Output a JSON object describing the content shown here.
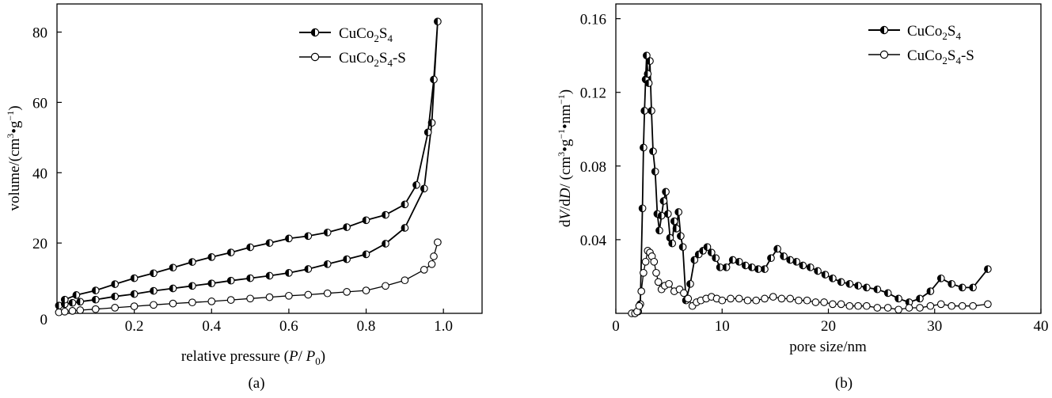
{
  "chart_data": [
    {
      "type": "line",
      "caption": "(a)",
      "xlabel": "relative pressure (P/ P0)",
      "ylabel": "volume/(cm³·g⁻¹)",
      "xlim": [
        0,
        1.1
      ],
      "ylim": [
        0,
        88
      ],
      "xticks": [
        0.2,
        0.4,
        0.6,
        0.8,
        1.0
      ],
      "xtick_labels": [
        "0.2",
        "0.4",
        "0.6",
        "0.8",
        "1.0"
      ],
      "yticks": [
        0,
        20,
        40,
        60,
        80
      ],
      "ytick_labels": [
        "0",
        "20",
        "40",
        "60",
        "80"
      ],
      "legend_position": "top-right",
      "series": [
        {
          "name": "CuCo₂S₄",
          "marker": "half-filled",
          "x": [
            0.005,
            0.02,
            0.04,
            0.06,
            0.1,
            0.15,
            0.2,
            0.25,
            0.3,
            0.35,
            0.4,
            0.45,
            0.5,
            0.55,
            0.6,
            0.65,
            0.7,
            0.75,
            0.8,
            0.85,
            0.9,
            0.95,
            0.97,
            0.985,
            0.975,
            0.96,
            0.93,
            0.9,
            0.85,
            0.8,
            0.75,
            0.7,
            0.65,
            0.6,
            0.55,
            0.5,
            0.45,
            0.4,
            0.35,
            0.3,
            0.25,
            0.2,
            0.15,
            0.1,
            0.05,
            0.02
          ],
          "y": [
            2.2,
            2.6,
            3.0,
            3.3,
            3.9,
            4.8,
            5.5,
            6.4,
            7.1,
            7.8,
            8.5,
            9.3,
            10.0,
            10.7,
            11.5,
            12.6,
            14.0,
            15.4,
            16.8,
            19.8,
            24.3,
            35.5,
            54.2,
            83.0,
            66.5,
            51.5,
            36.5,
            31.0,
            28.0,
            26.5,
            24.5,
            23.0,
            22.0,
            21.3,
            20.0,
            18.8,
            17.3,
            16.0,
            14.6,
            13.0,
            11.4,
            10.0,
            8.3,
            6.5,
            5.2,
            3.9
          ]
        },
        {
          "name": "CuCo₂S₄-S",
          "marker": "open",
          "x": [
            0.005,
            0.02,
            0.04,
            0.06,
            0.1,
            0.15,
            0.2,
            0.25,
            0.3,
            0.35,
            0.4,
            0.45,
            0.5,
            0.55,
            0.6,
            0.65,
            0.7,
            0.75,
            0.8,
            0.85,
            0.9,
            0.95,
            0.97,
            0.975,
            0.985
          ],
          "y": [
            0.3,
            0.5,
            0.7,
            0.9,
            1.2,
            1.6,
            2.0,
            2.4,
            2.8,
            3.1,
            3.4,
            3.8,
            4.2,
            4.6,
            5.0,
            5.3,
            5.7,
            6.1,
            6.5,
            7.8,
            9.4,
            12.4,
            14.0,
            16.2,
            20.2
          ]
        }
      ]
    },
    {
      "type": "line",
      "caption": "(b)",
      "xlabel": "pore size/nm",
      "ylabel": "dV/dD/ (cm³·g⁻¹·nm⁻¹)",
      "xlim": [
        0,
        40
      ],
      "ylim": [
        0,
        0.168
      ],
      "xticks": [
        0,
        10,
        20,
        30,
        40
      ],
      "xtick_labels": [
        "0",
        "10",
        "20",
        "30",
        "40"
      ],
      "yticks": [
        0.04,
        0.08,
        0.12,
        0.16
      ],
      "ytick_labels": [
        "0.04",
        "0.08",
        "0.12",
        "0.16"
      ],
      "legend_position": "top-right",
      "series": [
        {
          "name": "CuCo₂S₄",
          "marker": "half-filled",
          "x": [
            1.8,
            2.1,
            2.3,
            2.5,
            2.6,
            2.7,
            2.8,
            2.9,
            3.0,
            3.1,
            3.2,
            3.35,
            3.5,
            3.7,
            3.9,
            4.1,
            4.3,
            4.5,
            4.7,
            4.9,
            5.1,
            5.3,
            5.5,
            5.7,
            5.9,
            6.1,
            6.3,
            6.6,
            7.0,
            7.4,
            7.8,
            8.2,
            8.6,
            9.0,
            9.4,
            9.8,
            10.4,
            11.0,
            11.6,
            12.2,
            12.8,
            13.4,
            14.0,
            14.6,
            15.2,
            15.8,
            16.4,
            17.0,
            17.6,
            18.3,
            19.0,
            19.7,
            20.4,
            21.2,
            22.0,
            22.8,
            23.6,
            24.6,
            25.6,
            26.6,
            27.6,
            28.6,
            29.6,
            30.6,
            31.6,
            32.6,
            33.6,
            35.0
          ],
          "y": [
            0.0,
            0.001,
            0.005,
            0.057,
            0.09,
            0.11,
            0.127,
            0.14,
            0.13,
            0.125,
            0.137,
            0.11,
            0.088,
            0.077,
            0.054,
            0.045,
            0.053,
            0.061,
            0.066,
            0.054,
            0.041,
            0.038,
            0.05,
            0.046,
            0.055,
            0.042,
            0.036,
            0.007,
            0.016,
            0.029,
            0.032,
            0.034,
            0.036,
            0.033,
            0.03,
            0.025,
            0.025,
            0.029,
            0.028,
            0.026,
            0.025,
            0.024,
            0.024,
            0.03,
            0.035,
            0.031,
            0.029,
            0.028,
            0.026,
            0.025,
            0.023,
            0.021,
            0.019,
            0.017,
            0.016,
            0.015,
            0.014,
            0.013,
            0.011,
            0.008,
            0.006,
            0.008,
            0.012,
            0.019,
            0.016,
            0.014,
            0.014,
            0.024
          ]
        },
        {
          "name": "CuCo₂S₄-S",
          "marker": "open",
          "x": [
            1.5,
            1.8,
            2.0,
            2.2,
            2.4,
            2.6,
            2.8,
            3.0,
            3.2,
            3.4,
            3.6,
            3.8,
            4.0,
            4.3,
            4.6,
            5.0,
            5.5,
            6.0,
            6.4,
            6.8,
            7.2,
            7.6,
            8.0,
            8.5,
            9.0,
            9.5,
            10.0,
            10.8,
            11.6,
            12.4,
            13.2,
            14.0,
            14.8,
            15.6,
            16.4,
            17.2,
            18.0,
            18.8,
            19.6,
            20.4,
            21.2,
            22.0,
            22.8,
            23.6,
            24.6,
            25.6,
            26.6,
            27.6,
            28.6,
            29.6,
            30.6,
            31.6,
            32.6,
            33.6,
            35.0
          ],
          "y": [
            0.0,
            0.0,
            0.001,
            0.004,
            0.012,
            0.022,
            0.028,
            0.034,
            0.033,
            0.031,
            0.028,
            0.022,
            0.017,
            0.013,
            0.015,
            0.016,
            0.012,
            0.013,
            0.011,
            0.008,
            0.004,
            0.006,
            0.007,
            0.008,
            0.009,
            0.008,
            0.007,
            0.008,
            0.008,
            0.007,
            0.007,
            0.008,
            0.009,
            0.008,
            0.008,
            0.007,
            0.007,
            0.006,
            0.006,
            0.005,
            0.005,
            0.004,
            0.004,
            0.004,
            0.003,
            0.003,
            0.002,
            0.003,
            0.003,
            0.004,
            0.005,
            0.004,
            0.004,
            0.004,
            0.005
          ]
        }
      ]
    }
  ]
}
